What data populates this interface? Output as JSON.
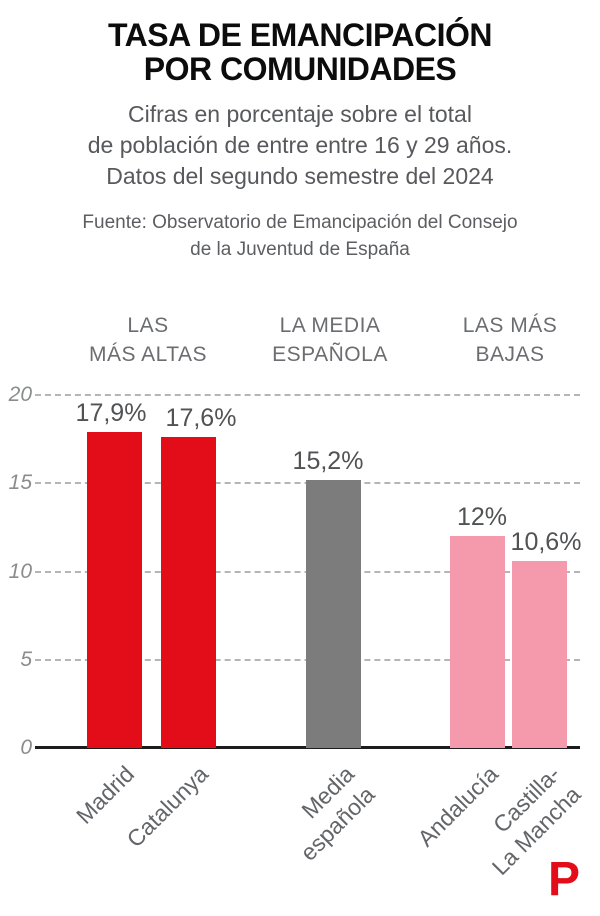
{
  "header": {
    "title": "TASA DE EMANCIPACIÓN\nPOR COMUNIDADES",
    "subtitle": "Cifras en porcentaje sobre el total\nde población de entre entre 16 y 29 años.\nDatos del segundo semestre del 2024",
    "source": "Fuente: Observatorio de Emancipación del Consejo\nde la Juventud de España"
  },
  "group_headers": [
    {
      "label": "LAS\nMÁS ALTAS"
    },
    {
      "label": "LA MEDIA\nESPAÑOLA"
    },
    {
      "label": "LAS MÁS\nBAJAS"
    }
  ],
  "chart_data": {
    "type": "bar",
    "categories": [
      "Madrid",
      "Catalunya",
      "Media española",
      "Andalucía",
      "Castilla-La Mancha"
    ],
    "tick_labels": [
      "Madrid",
      "Catalunya",
      "Media\nespañola",
      "Andalucía",
      "Castilla-\nLa Mancha"
    ],
    "values": [
      17.9,
      17.6,
      15.2,
      12,
      10.6
    ],
    "value_labels": [
      "17,9%",
      "17,6%",
      "15,2%",
      "12%",
      "10,6%"
    ],
    "bar_colors": [
      "#e20d18",
      "#e20d18",
      "#7c7c7c",
      "#f49aac",
      "#f49aac"
    ],
    "groups": [
      "LAS MÁS ALTAS",
      "LAS MÁS ALTAS",
      "LA MEDIA ESPAÑOLA",
      "LAS MÁS BAJAS",
      "LAS MÁS BAJAS"
    ],
    "yticks": [
      0,
      5,
      10,
      15,
      20
    ],
    "ytick_labels": [
      "0",
      "5",
      "10",
      "15",
      "20"
    ],
    "ylim": [
      0,
      20
    ],
    "grid": "dashed horizontal",
    "title": "TASA DE EMANCIPACIÓN POR COMUNIDADES",
    "xlabel": "",
    "ylabel": ""
  },
  "colors": {
    "accent_red": "#e20d18",
    "bar_gray": "#7c7c7c",
    "bar_pink": "#f49aac",
    "grid_gray": "#b5b5b5",
    "text_gray": "#5c5e61"
  },
  "logo": {
    "letter": "P",
    "color": "#e20d18"
  }
}
